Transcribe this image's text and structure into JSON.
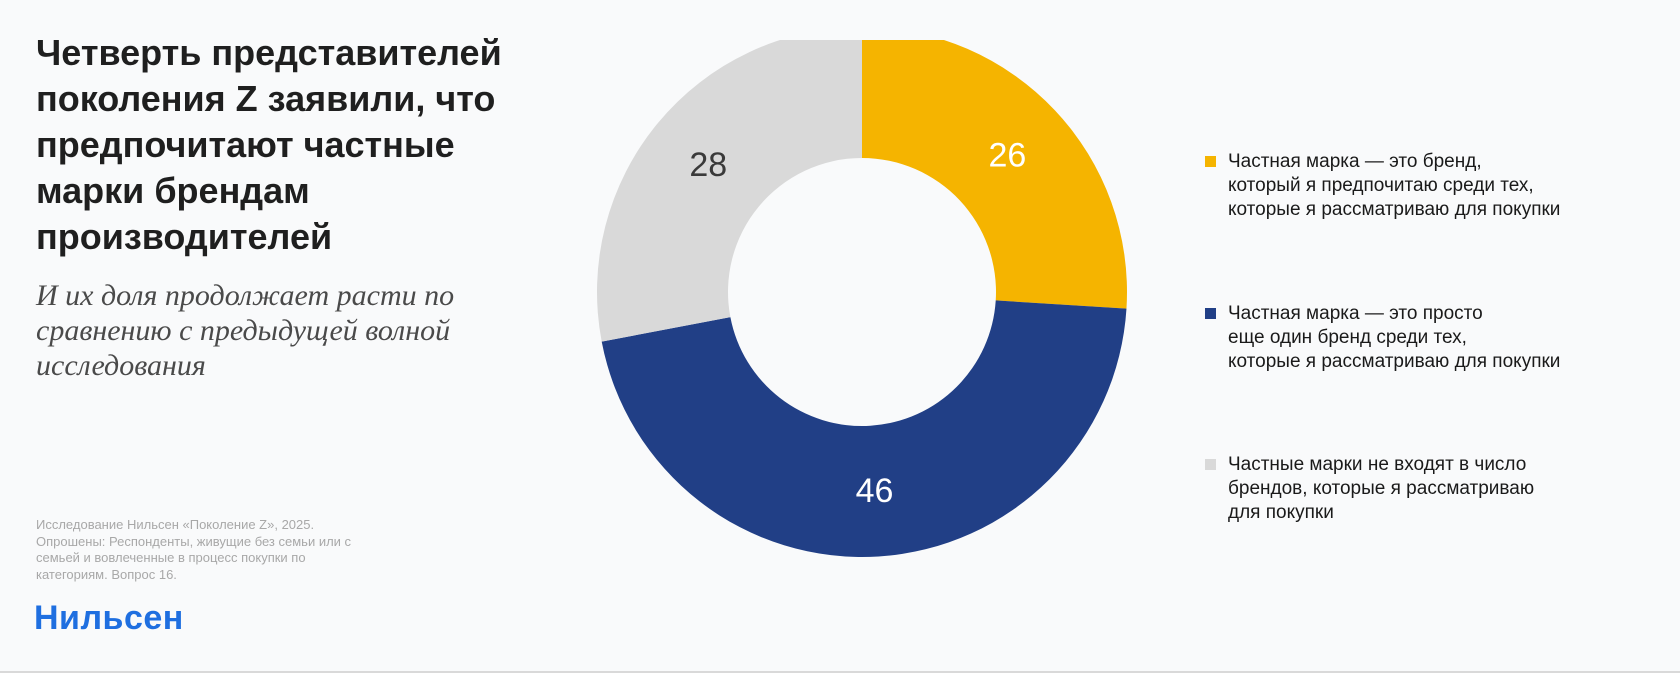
{
  "slide": {
    "title": "Четверть представителей поколения Z заявили, что предпочитают частные марки брендам производителей",
    "subtitle": "И их доля продолжает расти по сравнению с предыдущей волной исследования",
    "source": "Исследование Нильсен «Поколение Z», 2025. Опрошены: Респонденты, живущие без семьи или с семьей и вовлеченные в процесс покупки по категориям. Вопрос 16.",
    "logo_text": "Нильсен",
    "logo_color": "#1f6fe0"
  },
  "chart_data": {
    "type": "pie",
    "style": "donut",
    "title": "",
    "legend_position": "right",
    "slices": [
      {
        "value": 26,
        "label": "26",
        "legend": "Частная марка — это бренд,\nкоторый я предпочитаю среди тех,\nкоторые я рассматриваю для покупки",
        "color": "#f5b400",
        "label_color": "#ffffff"
      },
      {
        "value": 46,
        "label": "46",
        "legend": "Частная марка — это просто\nеще один бренд среди тех,\nкоторые я рассматриваю для покупки",
        "color": "#213f86",
        "label_color": "#ffffff"
      },
      {
        "value": 28,
        "label": "28",
        "legend": "Частные марки не входят в число\nбрендов, которые я рассматриваю\nдля покупки",
        "color": "#d9d9d9",
        "label_color": "#3a3a3a"
      }
    ]
  }
}
